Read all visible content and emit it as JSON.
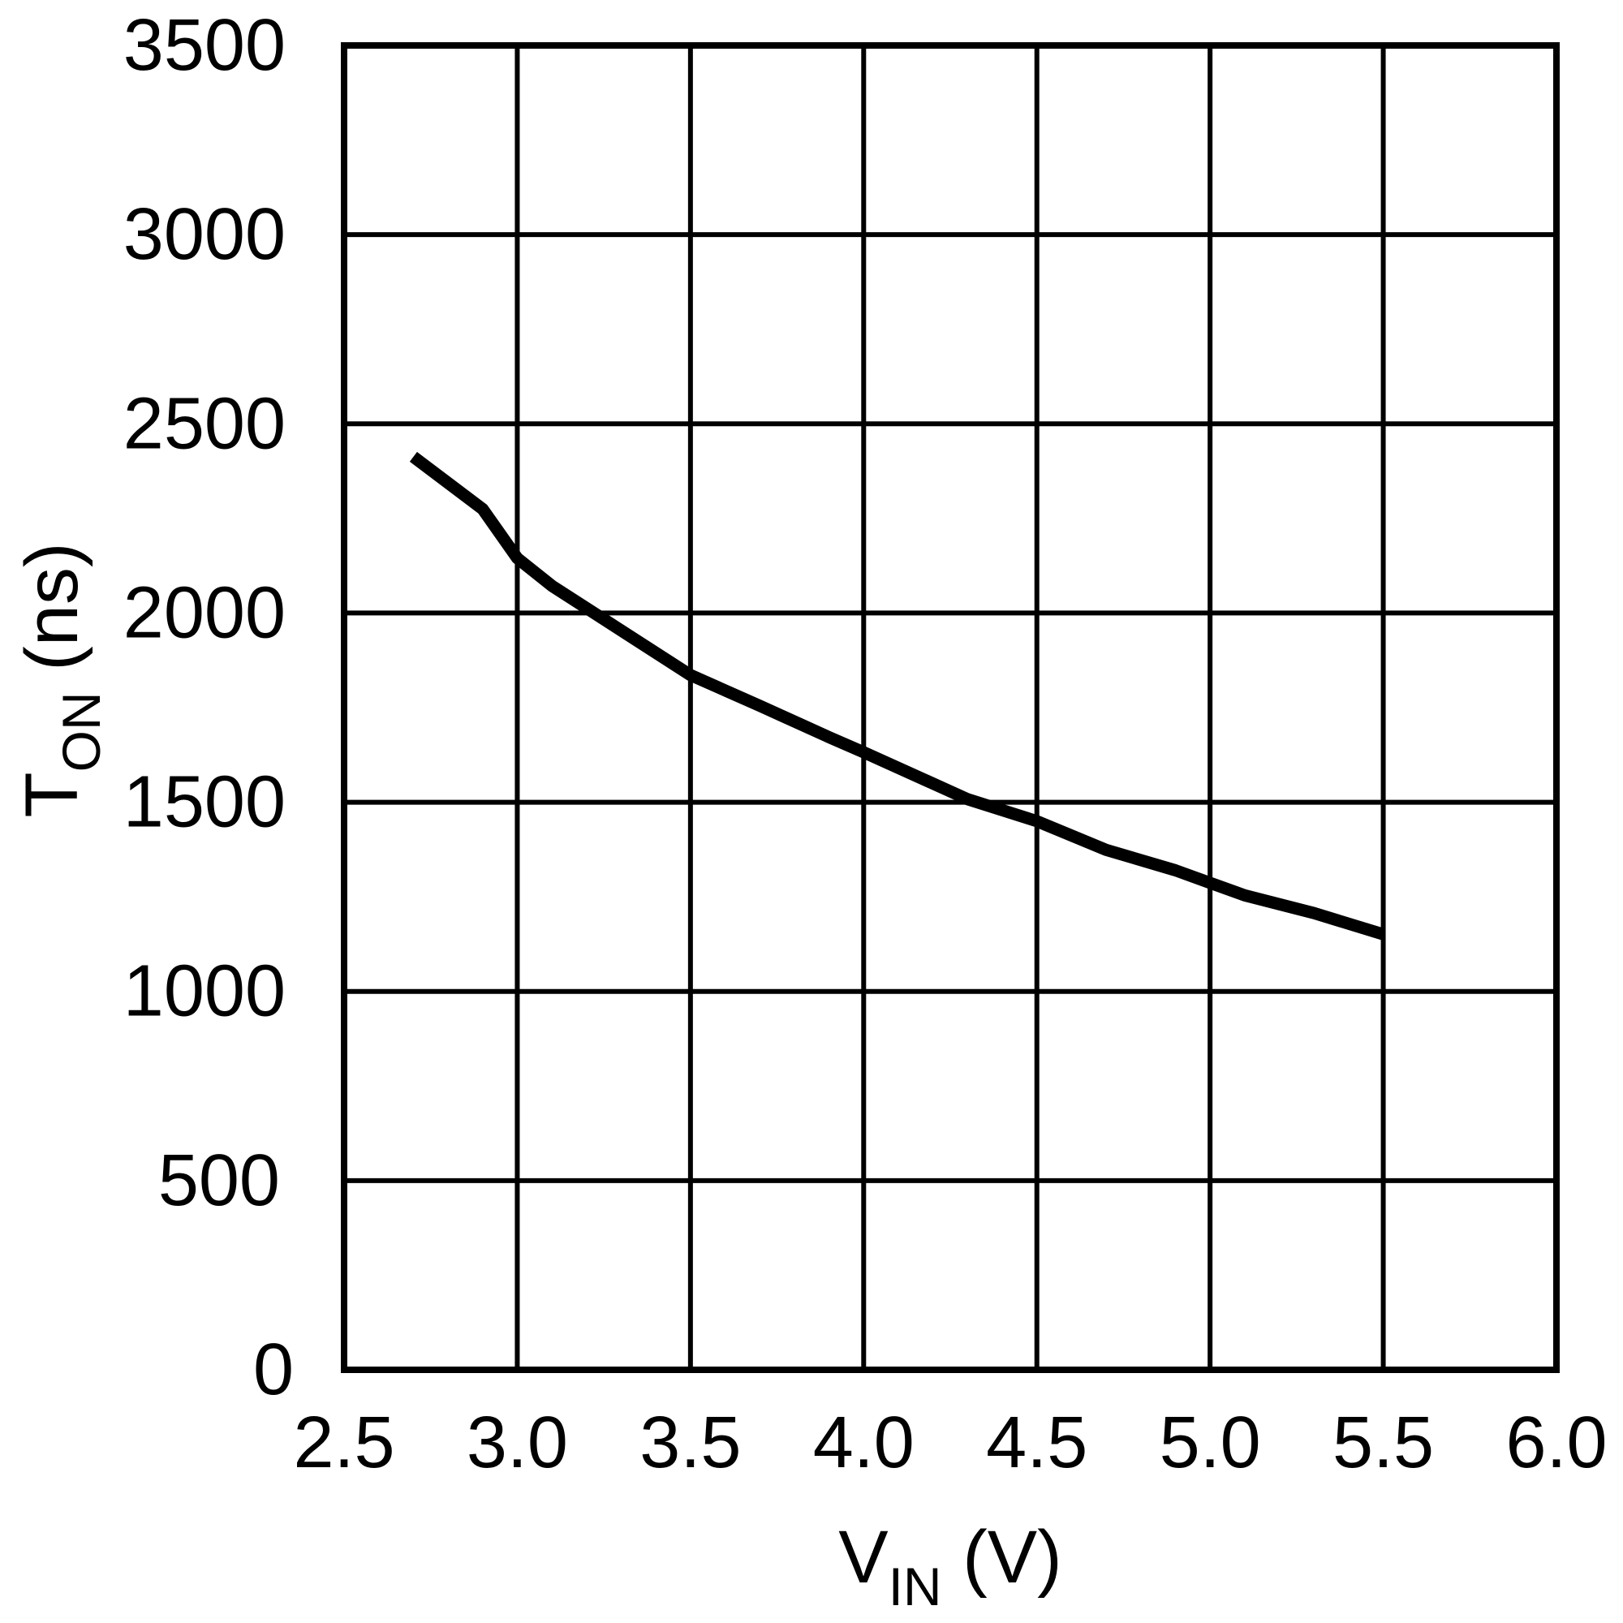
{
  "chart_data": {
    "type": "line",
    "title": "",
    "xlabel": "V_IN (V)",
    "ylabel": "T_ON (ns)",
    "xlabel_parts": {
      "main": "V",
      "sub": "IN",
      "unit": " (V)"
    },
    "ylabel_parts": {
      "main": "T",
      "sub": "ON",
      "unit": " (ns)"
    },
    "xlim": [
      2.5,
      6.0
    ],
    "ylim": [
      0,
      3500
    ],
    "x_ticks": [
      2.5,
      3.0,
      3.5,
      4.0,
      4.5,
      5.0,
      5.5,
      6.0
    ],
    "x_tick_labels": [
      "2.5",
      "3.0",
      "3.5",
      "4.0",
      "4.5",
      "5.0",
      "5.5",
      "6.0"
    ],
    "y_ticks": [
      0,
      500,
      1000,
      1500,
      2000,
      2500,
      3000,
      3500
    ],
    "y_tick_labels": [
      "0",
      "500",
      "1000",
      "1500",
      "2000",
      "2500",
      "3000",
      "3500"
    ],
    "grid": true,
    "legend": null,
    "series": [
      {
        "name": "T_ON",
        "color": "#000000",
        "x": [
          2.7,
          2.9,
          3.0,
          3.1,
          3.5,
          3.7,
          3.9,
          4.0,
          4.3,
          4.5,
          4.7,
          4.9,
          5.0,
          5.1,
          5.3,
          5.5
        ],
        "y": [
          2413,
          2275,
          2145,
          2072,
          1836,
          1755,
          1672,
          1632,
          1508,
          1450,
          1374,
          1320,
          1287,
          1254,
          1207,
          1151
        ]
      }
    ]
  },
  "style": {
    "line_color": "#000000",
    "grid_color": "#000000",
    "background": "#ffffff"
  }
}
